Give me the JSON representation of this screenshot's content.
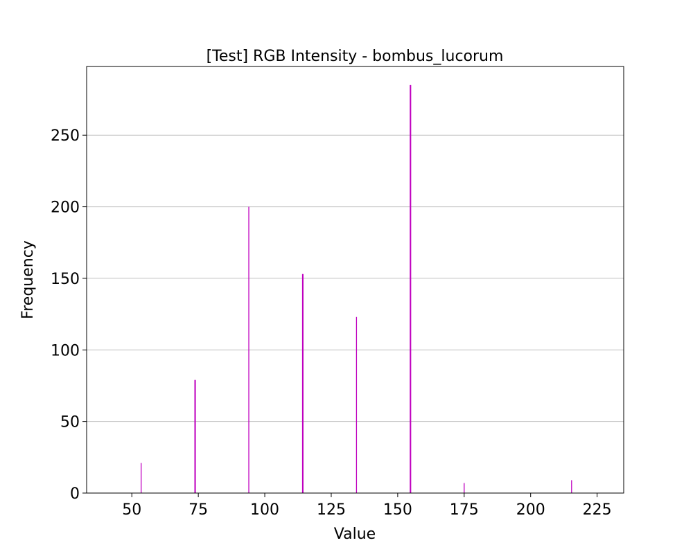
{
  "chart_data": {
    "type": "bar",
    "title": "[Test] RGB Intensity - bombus_lucorum",
    "xlabel": "Value",
    "ylabel": "Frequency",
    "xlim": [
      33,
      235
    ],
    "ylim": [
      0,
      298
    ],
    "xticks": [
      50,
      75,
      100,
      125,
      150,
      175,
      200,
      225
    ],
    "yticks": [
      0,
      50,
      100,
      150,
      200,
      250
    ],
    "grid": "y",
    "legend": "none",
    "bar_color": "#bf00bf",
    "series": [
      {
        "x": [
          53.5,
          73.7,
          73.9,
          94.0,
          114.2,
          114.4,
          134.5,
          154.7,
          154.9,
          175.0,
          215.4
        ],
        "values": [
          21,
          79,
          79,
          200,
          153,
          153,
          123,
          285,
          285,
          7,
          9
        ]
      }
    ]
  }
}
